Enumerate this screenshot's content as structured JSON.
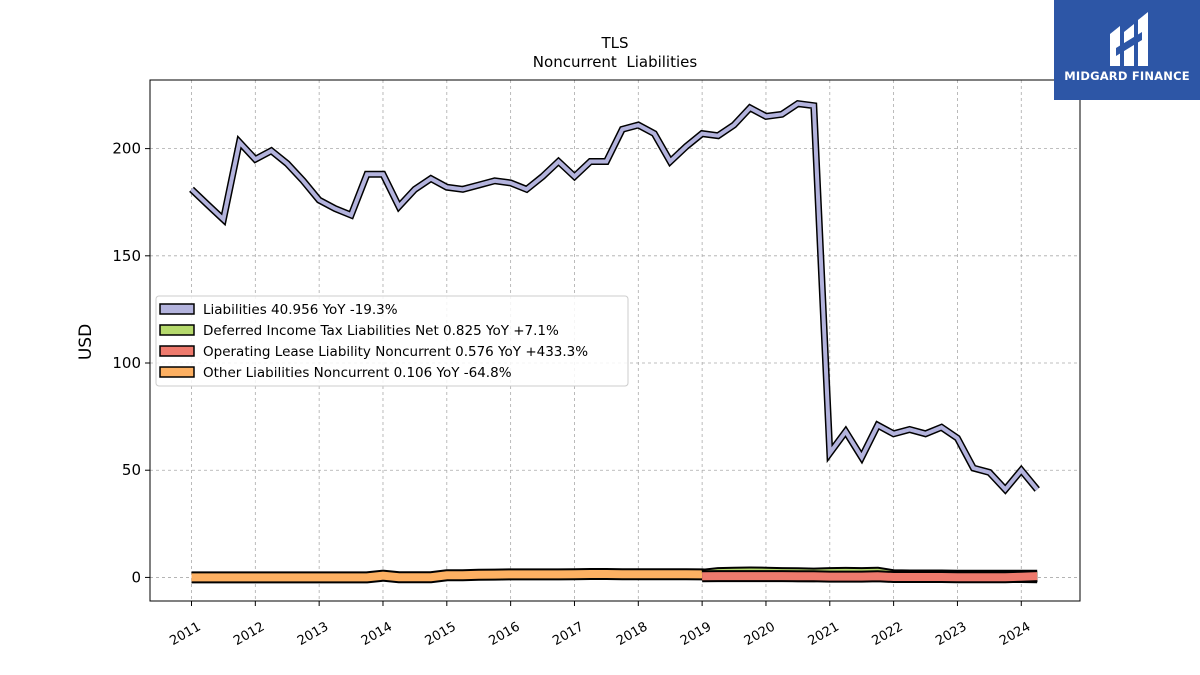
{
  "chart_data": {
    "type": "line",
    "title": "TLS",
    "subtitle": "Noncurrent  Liabilities",
    "ylabel": "USD",
    "xlabel": "",
    "ylim": [
      -11,
      232
    ],
    "xlim": [
      2010.35,
      2024.92
    ],
    "yticks": [
      0,
      50,
      100,
      150,
      200
    ],
    "xticks": [
      "2011",
      "2012",
      "2013",
      "2014",
      "2015",
      "2016",
      "2017",
      "2018",
      "2019",
      "2020",
      "2021",
      "2022",
      "2023",
      "2024"
    ],
    "grid": true,
    "legend_position": "center-left",
    "series": [
      {
        "name": "Liabilities  40.956 YoY -19.3%",
        "color": "#b3b3dd",
        "x": [
          2011.0,
          2011.25,
          2011.5,
          2011.75,
          2012.0,
          2012.25,
          2012.5,
          2012.75,
          2013.0,
          2013.25,
          2013.5,
          2013.75,
          2014.0,
          2014.25,
          2014.5,
          2014.75,
          2015.0,
          2015.25,
          2015.5,
          2015.75,
          2016.0,
          2016.25,
          2016.5,
          2016.75,
          2017.0,
          2017.25,
          2017.5,
          2017.75,
          2018.0,
          2018.25,
          2018.5,
          2018.75,
          2019.0,
          2019.25,
          2019.5,
          2019.75,
          2020.0,
          2020.25,
          2020.5,
          2020.75,
          2021.0,
          2021.25,
          2021.5,
          2021.75,
          2022.0,
          2022.25,
          2022.5,
          2022.75,
          2023.0,
          2023.25,
          2023.5,
          2023.75,
          2024.0,
          2024.25
        ],
        "values": [
          181,
          174,
          167,
          203,
          195,
          199,
          193,
          185,
          176,
          172,
          169,
          188,
          188,
          173,
          181,
          186,
          182,
          181,
          183,
          185,
          184,
          181,
          187,
          194,
          187,
          194,
          194,
          209,
          211,
          207,
          194,
          201,
          207,
          206,
          211,
          219,
          215,
          216,
          221,
          220,
          58,
          68,
          56,
          71,
          67,
          69,
          67,
          70,
          65,
          51,
          49,
          41,
          50,
          41
        ]
      },
      {
        "name": "Deferred Income Tax Liabilities Net  0.825 YoY +7.1%",
        "color": "#b5d96c",
        "x": [
          2019.0,
          2019.25,
          2019.5,
          2019.75,
          2020.0,
          2020.25,
          2020.5,
          2020.75,
          2021.0,
          2021.25,
          2021.5,
          2021.75,
          2022.0,
          2022.25,
          2022.5,
          2022.75,
          2023.0,
          2023.25,
          2023.5,
          2023.75,
          2024.0,
          2024.25
        ],
        "values": [
          1.2,
          2.0,
          2.2,
          2.3,
          2.2,
          2.0,
          1.9,
          1.8,
          2.0,
          2.1,
          2.0,
          2.2,
          1.0,
          0.9,
          0.9,
          0.9,
          0.8,
          0.8,
          0.8,
          0.8,
          0.8,
          0.8
        ]
      },
      {
        "name": "Operating Lease Liability Noncurrent  0.576 YoY +433.3%",
        "color": "#ee7a6d",
        "x": [
          2019.0,
          2019.25,
          2019.5,
          2019.75,
          2020.0,
          2020.25,
          2020.5,
          2020.75,
          2021.0,
          2021.25,
          2021.5,
          2021.75,
          2022.0,
          2022.25,
          2022.5,
          2022.75,
          2023.0,
          2023.25,
          2023.5,
          2023.75,
          2024.0,
          2024.25
        ],
        "values": [
          0.5,
          0.6,
          0.6,
          0.6,
          0.6,
          0.6,
          0.5,
          0.5,
          0.4,
          0.4,
          0.4,
          0.5,
          0.2,
          0.2,
          0.2,
          0.2,
          0.1,
          0.1,
          0.1,
          0.1,
          0.3,
          0.6
        ]
      },
      {
        "name": "Other Liabilities Noncurrent  0.106 YoY -64.8%",
        "color": "#fdb062",
        "x": [
          2011.0,
          2011.25,
          2011.5,
          2011.75,
          2012.0,
          2012.25,
          2012.5,
          2012.75,
          2013.0,
          2013.25,
          2013.5,
          2013.75,
          2014.0,
          2014.25,
          2014.5,
          2014.75,
          2015.0,
          2015.25,
          2015.5,
          2015.75,
          2016.0,
          2016.25,
          2016.5,
          2016.75,
          2017.0,
          2017.25,
          2017.5,
          2017.75,
          2018.0,
          2018.25,
          2018.5,
          2018.75,
          2019.0,
          2019.25,
          2019.5,
          2019.75,
          2020.0,
          2020.25,
          2020.5,
          2020.75,
          2021.0,
          2021.25,
          2021.5,
          2021.75,
          2022.0,
          2022.25,
          2022.5,
          2022.75,
          2023.0,
          2023.25,
          2023.5,
          2023.75,
          2024.0,
          2024.25
        ],
        "values": [
          0.0,
          0.0,
          0.0,
          0.0,
          0.0,
          0.0,
          0.0,
          0.0,
          0.0,
          0.0,
          0.0,
          0.0,
          0.8,
          0.1,
          0.1,
          0.1,
          1.0,
          1.0,
          1.2,
          1.3,
          1.4,
          1.4,
          1.4,
          1.4,
          1.5,
          1.6,
          1.6,
          1.5,
          1.5,
          1.5,
          1.5,
          1.5,
          1.4,
          1.0,
          1.0,
          0.9,
          0.9,
          0.8,
          0.6,
          0.5,
          1.0,
          1.1,
          1.2,
          1.3,
          0.7,
          0.6,
          0.5,
          0.4,
          0.3,
          0.3,
          0.2,
          0.2,
          0.2,
          0.1
        ]
      }
    ]
  },
  "logo": {
    "text": "MIDGARD FINANCE",
    "background": "#2d56a6"
  }
}
